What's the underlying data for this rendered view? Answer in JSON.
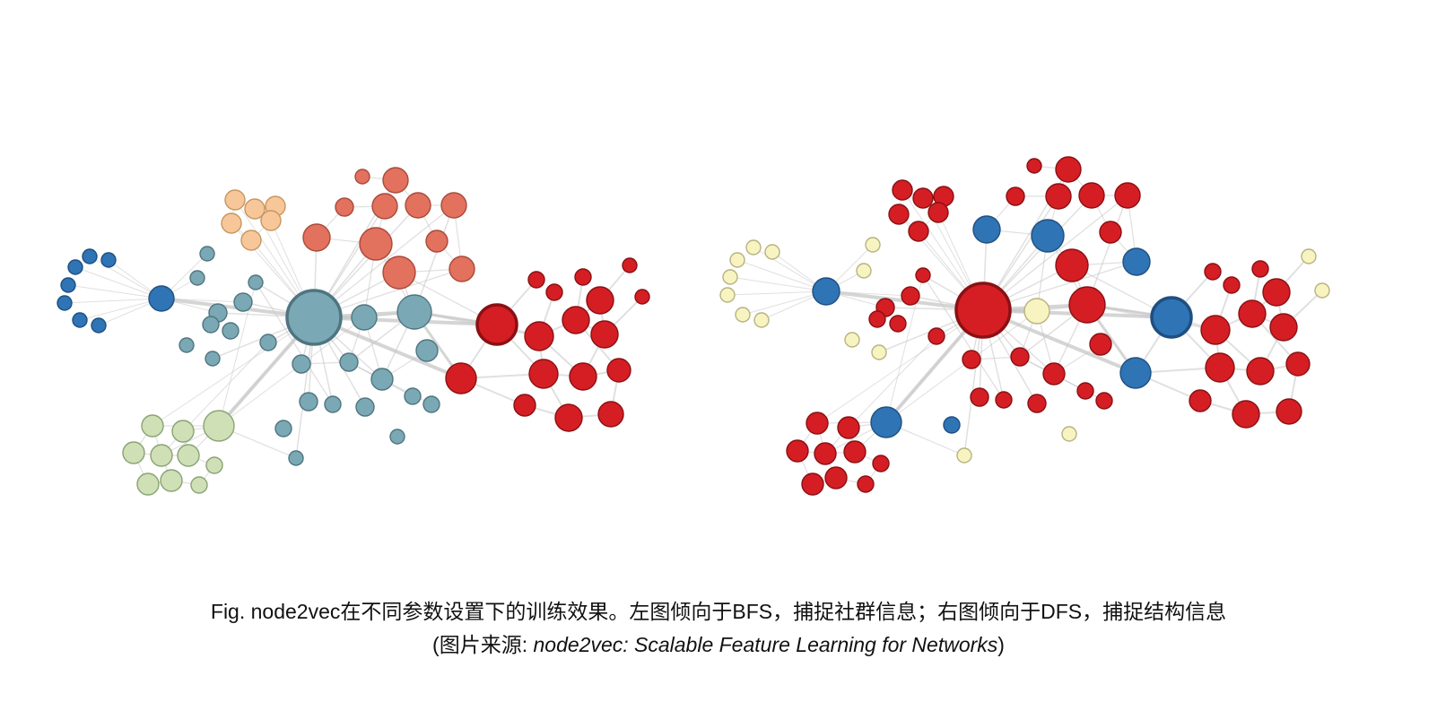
{
  "figure": {
    "caption_line1": "Fig. node2vec在不同参数设置下的训练效果。左图倾向于BFS，捕捉社群信息；右图倾向于DFS，捕捉结构信息",
    "caption_source_prefix": "(图片来源: ",
    "caption_source_title": "node2vec: Scalable Feature Learning for Networks",
    "caption_source_suffix": ")"
  },
  "colors": {
    "edge": "#c7c7c7",
    "dark_blue": "#2f74b5",
    "teal": "#7aa8b5",
    "peach": "#f7c79a",
    "salmon": "#e2715d",
    "red": "#d41e23",
    "light_green": "#cfdfb6",
    "pale_yellow": "#f7f4c1"
  }
}
